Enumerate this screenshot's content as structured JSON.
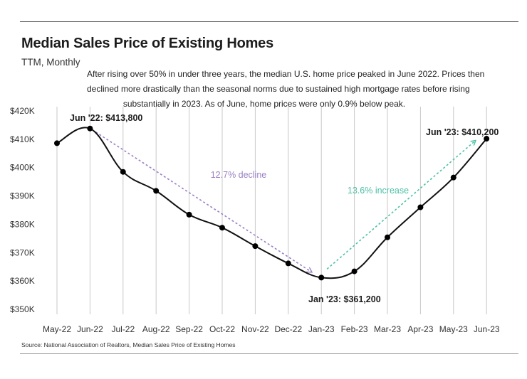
{
  "header": {
    "title": "Median Sales Price of Existing Homes",
    "subtitle": "TTM, Monthly",
    "description_lines": [
      "After rising over 50% in under three years, the median U.S. home price peaked in June 2022. Prices then",
      "declined more drastically than the seasonal norms due to sustained high mortgage rates before rising",
      "substantially in 2023. As of June, home prices were only 0.9% below peak."
    ]
  },
  "footer": {
    "source": "Source:  National Association of Realtors, Median Sales Price of Existing Homes"
  },
  "colors": {
    "line": "#111111",
    "decline_arrow": "#9b7fc4",
    "increase_arrow": "#4cbfa6",
    "grid": "#c8c8c8"
  },
  "chart_data": {
    "type": "line",
    "title": "Median Sales Price of Existing Homes",
    "xlabel": "",
    "ylabel": "",
    "categories": [
      "May-22",
      "Jun-22",
      "Jul-22",
      "Aug-22",
      "Sep-22",
      "Oct-22",
      "Nov-22",
      "Dec-22",
      "Jan-23",
      "Feb-23",
      "Mar-23",
      "Apr-23",
      "May-23",
      "Jun-23"
    ],
    "values": [
      408600,
      413800,
      398500,
      391800,
      383400,
      378800,
      372300,
      366200,
      361200,
      363400,
      375400,
      386000,
      396500,
      410200
    ],
    "ylim": [
      350000,
      420000
    ],
    "yticks": [
      350000,
      360000,
      370000,
      380000,
      390000,
      400000,
      410000,
      420000
    ],
    "ytick_labels": [
      "$350K",
      "$360K",
      "$370K",
      "$380K",
      "$390K",
      "$400K",
      "$410K",
      "$420K"
    ],
    "grid": "vertical",
    "annotations": [
      {
        "index": 1,
        "text": "Jun '22: $413,800"
      },
      {
        "index": 8,
        "text": "Jan '23: $361,200"
      },
      {
        "index": 13,
        "text": "Jun '23: $410,200"
      }
    ],
    "arrows": [
      {
        "from_index": 1,
        "to_index": 8,
        "label": "12.7% decline",
        "color": "#9b7fc4"
      },
      {
        "from_index": 8,
        "to_index": 13,
        "label": "13.6% increase",
        "color": "#4cbfa6"
      }
    ]
  }
}
